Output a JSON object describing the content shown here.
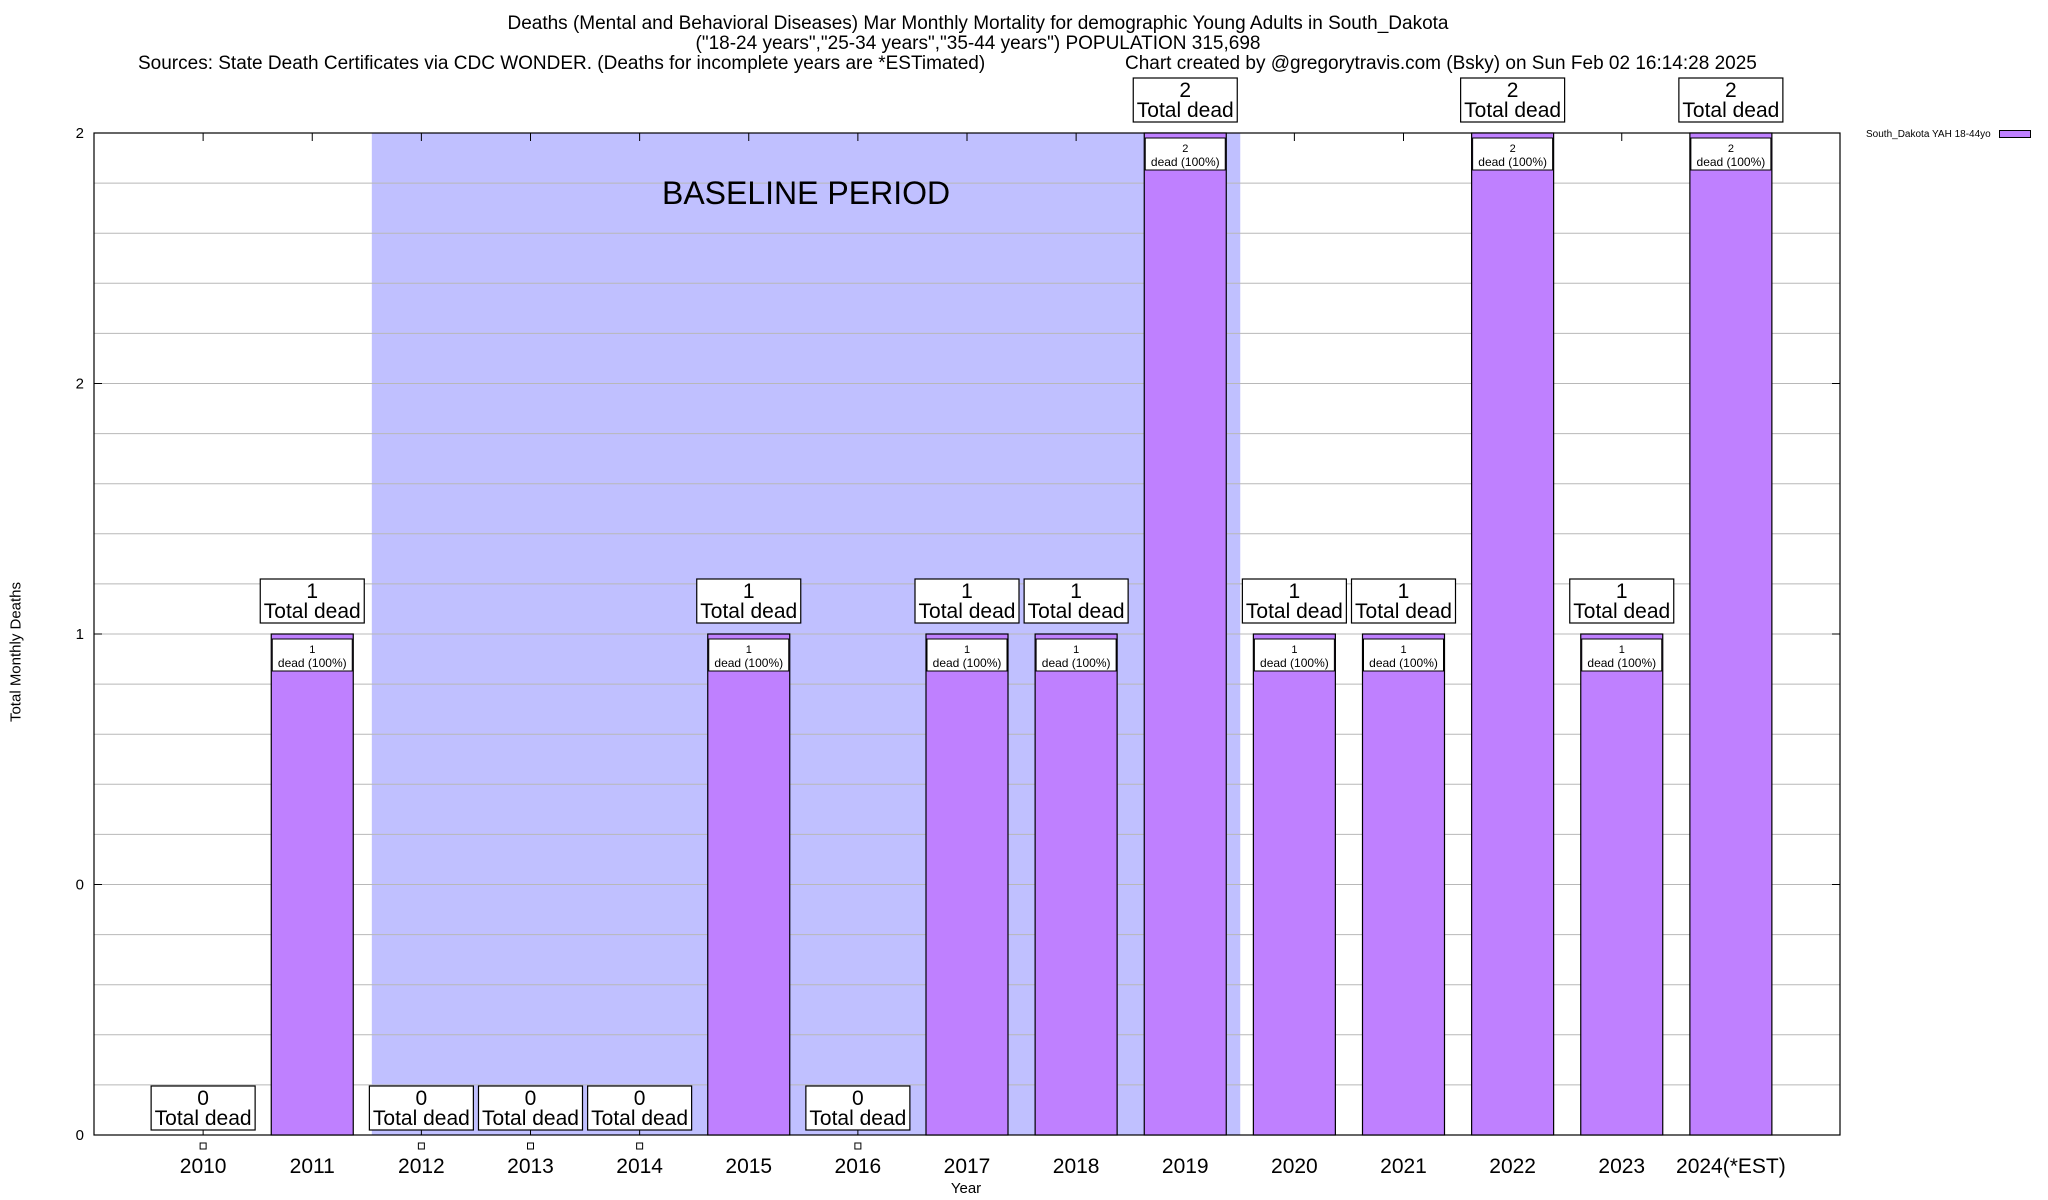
{
  "title_line1": "Deaths (Mental and Behavioral Diseases) Mar Monthly Mortality for demographic Young Adults in South_Dakota",
  "title_line2": "(\"18-24 years\",\"25-34 years\",\"35-44 years\") POPULATION 315,698",
  "sources": "Sources: State Death Certificates via CDC WONDER. (Deaths for incomplete years are *ESTimated)",
  "credit": "Chart created by @gregorytravis.com (Bsky) on Sun Feb 02 16:14:28 2025",
  "chart_data": {
    "type": "bar",
    "categories": [
      "2010",
      "2011",
      "2012",
      "2013",
      "2014",
      "2015",
      "2016",
      "2017",
      "2018",
      "2019",
      "2020",
      "2021",
      "2022",
      "2023",
      "2024(*EST)"
    ],
    "series": [
      {
        "name": "South_Dakota YAH 18-44yo",
        "values": [
          0,
          1,
          0,
          0,
          0,
          1,
          0,
          1,
          1,
          2,
          1,
          1,
          2,
          1,
          2
        ],
        "color": "#bf80ff"
      }
    ],
    "ylabel": "Total Monthly Deaths",
    "xlabel": "Year",
    "ylim": [
      0,
      2
    ],
    "ytick_labels": [
      "0",
      "0",
      "1",
      "2",
      "2"
    ],
    "total_label_suffix": "Total dead",
    "bar_label_suffix": "dead (100%)",
    "baseline": {
      "label": "BASELINE PERIOD",
      "from": "2012",
      "to": "2019",
      "color": "#c0c0ff"
    },
    "grid": true,
    "legend_position": "top-right"
  }
}
